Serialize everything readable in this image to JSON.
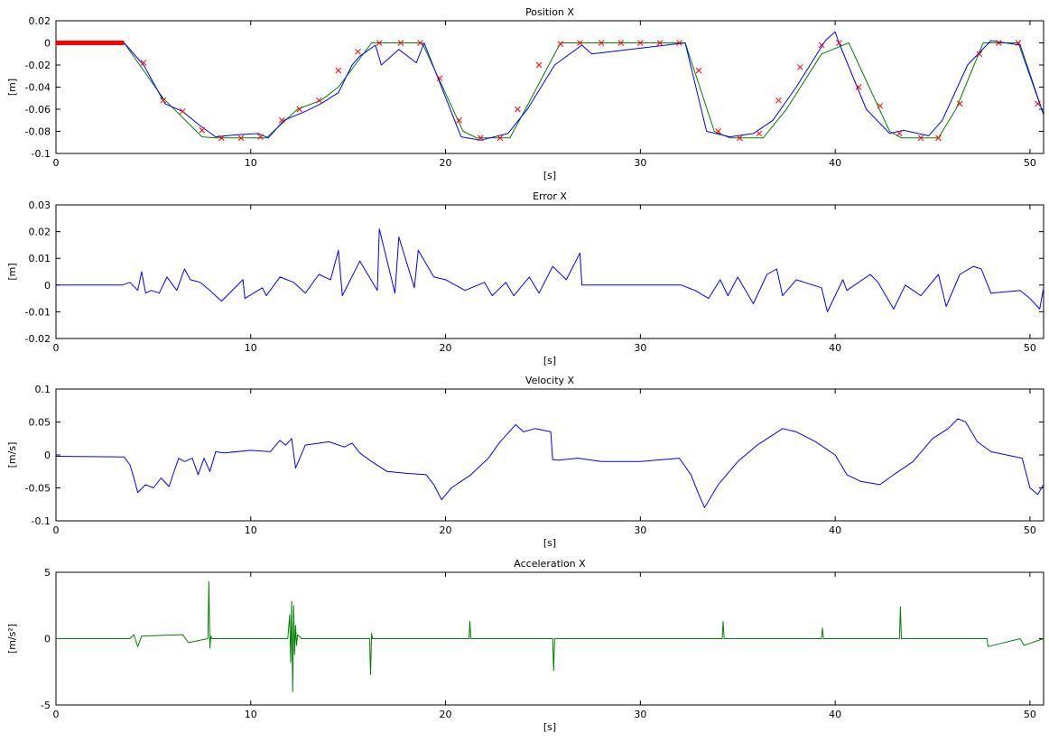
{
  "chart_data": [
    {
      "type": "line",
      "title": "Position X",
      "xlabel": "[s]",
      "ylabel": "[m]",
      "xlim": [
        0,
        50.7
      ],
      "ylim": [
        -0.1,
        0.02
      ],
      "xticks": [
        0,
        10,
        20,
        30,
        40,
        50
      ],
      "xtick_labels": [
        "0",
        "10",
        "20",
        "30",
        "40",
        "50"
      ],
      "yticks": [
        -0.1,
        -0.08,
        -0.06,
        -0.04,
        -0.02,
        0,
        0.02
      ],
      "ytick_labels": [
        "-0.1",
        "-0.08",
        "-0.06",
        "-0.04",
        "-0.02",
        "0",
        "0.02"
      ],
      "grid": false,
      "colors": {
        "reference": "#008000",
        "measured": "#0000ff",
        "waypoints": "#ff0000",
        "initial": "#ff0000"
      },
      "series": [
        {
          "role": "reference",
          "x": [
            0,
            3.5,
            5.5,
            7.5,
            8.2,
            10.8,
            12.4,
            13.6,
            14.5,
            16.2,
            16.6,
            18.8,
            20.9,
            21.6,
            23.3,
            24.1,
            25.9,
            32.3,
            33.8,
            34.6,
            36.3,
            37.5,
            39.3,
            40.7,
            42.8,
            43.4,
            45.3,
            46.2,
            47.6,
            49.4,
            50.7
          ],
          "y": [
            0,
            0,
            -0.05,
            -0.085,
            -0.086,
            -0.086,
            -0.06,
            -0.052,
            -0.04,
            0,
            0,
            0,
            -0.08,
            -0.086,
            -0.086,
            -0.06,
            0,
            0,
            -0.08,
            -0.086,
            -0.086,
            -0.06,
            -0.01,
            0,
            -0.08,
            -0.086,
            -0.086,
            -0.06,
            0,
            0,
            -0.065
          ]
        },
        {
          "role": "measured",
          "x": [
            0,
            3.5,
            4.5,
            5.6,
            6.5,
            7.4,
            8.2,
            9.3,
            10.4,
            10.9,
            11.7,
            12.8,
            13.6,
            14.5,
            15.2,
            15.6,
            16.4,
            16.7,
            17.6,
            18.5,
            18.9,
            20.8,
            21.8,
            23.2,
            24.2,
            25.6,
            27.0,
            27.5,
            32.3,
            33.4,
            34.6,
            35.8,
            36.8,
            38.0,
            39.5,
            40.0,
            40.2,
            41.6,
            42.8,
            43.5,
            44.8,
            45.5,
            46.8,
            48.0,
            49.5,
            50.7
          ],
          "y": [
            0,
            0,
            -0.02,
            -0.055,
            -0.062,
            -0.075,
            -0.085,
            -0.083,
            -0.082,
            -0.086,
            -0.07,
            -0.062,
            -0.055,
            -0.045,
            -0.02,
            -0.012,
            -0.002,
            -0.02,
            -0.006,
            -0.018,
            0,
            -0.085,
            -0.088,
            -0.082,
            -0.06,
            -0.02,
            -0.002,
            -0.01,
            0,
            -0.08,
            -0.085,
            -0.082,
            -0.07,
            -0.04,
            0.002,
            0.01,
            0,
            -0.06,
            -0.082,
            -0.079,
            -0.084,
            -0.07,
            -0.02,
            0.002,
            -0.002,
            -0.065
          ]
        },
        {
          "role": "waypoints",
          "x": [
            4.5,
            5.5,
            6.5,
            7.5,
            8.5,
            9.5,
            10.5,
            11.6,
            12.5,
            13.5,
            14.5,
            15.5,
            16.6,
            17.7,
            18.7,
            19.7,
            20.7,
            21.8,
            22.8,
            23.7,
            24.8,
            25.9,
            26.9,
            28.0,
            29.0,
            30.0,
            31.0,
            32.0,
            33.0,
            34.0,
            35.1,
            36.1,
            37.1,
            38.2,
            39.3,
            40.2,
            41.2,
            42.3,
            43.3,
            44.4,
            45.3,
            46.4,
            47.4,
            48.4,
            49.4,
            50.4
          ],
          "y": [
            -0.018,
            -0.052,
            -0.062,
            -0.079,
            -0.086,
            -0.086,
            -0.085,
            -0.07,
            -0.06,
            -0.052,
            -0.025,
            -0.008,
            0,
            0,
            0,
            -0.032,
            -0.07,
            -0.086,
            -0.086,
            -0.06,
            -0.02,
            -0.001,
            0,
            0,
            0,
            0,
            0,
            0,
            -0.025,
            -0.08,
            -0.086,
            -0.082,
            -0.052,
            -0.022,
            -0.002,
            0,
            -0.04,
            -0.057,
            -0.082,
            -0.086,
            -0.086,
            -0.055,
            -0.01,
            0,
            0,
            -0.055
          ]
        },
        {
          "role": "initial",
          "x": [
            0,
            3.5
          ],
          "y": [
            0,
            0
          ]
        }
      ]
    },
    {
      "type": "line",
      "title": "Error X",
      "xlabel": "[s]",
      "ylabel": "[m]",
      "xlim": [
        0,
        50.7
      ],
      "ylim": [
        -0.02,
        0.03
      ],
      "xticks": [
        0,
        10,
        20,
        30,
        40,
        50
      ],
      "xtick_labels": [
        "0",
        "10",
        "20",
        "30",
        "40",
        "50"
      ],
      "yticks": [
        -0.02,
        -0.01,
        0,
        0.01,
        0.02,
        0.03
      ],
      "ytick_labels": [
        "-0.02",
        "-0.01",
        "0",
        "0.01",
        "0.02",
        "0.03"
      ],
      "grid": false,
      "colors": {
        "error": "#0000ff"
      },
      "series": [
        {
          "role": "error",
          "x": [
            0,
            3.4,
            3.8,
            4.2,
            4.4,
            4.6,
            4.9,
            5.3,
            5.7,
            6.2,
            6.6,
            6.9,
            7.4,
            7.9,
            8.5,
            9.6,
            9.7,
            10.6,
            10.8,
            11.5,
            12.2,
            12.8,
            13.5,
            14.1,
            14.5,
            14.7,
            15.6,
            16.5,
            16.6,
            17.4,
            17.6,
            18.4,
            18.6,
            19.4,
            20.0,
            21.0,
            22.0,
            22.4,
            23.1,
            23.5,
            24.3,
            24.8,
            25.5,
            26.2,
            26.9,
            27.0,
            28.5,
            32.1,
            32.8,
            33.5,
            34.1,
            34.5,
            35.0,
            35.8,
            36.5,
            37.0,
            37.3,
            38.0,
            39.3,
            39.6,
            40.4,
            40.6,
            41.8,
            42.2,
            43.0,
            43.6,
            44.4,
            45.3,
            45.7,
            46.4,
            47.1,
            47.5,
            48.0,
            49.5,
            50.0,
            50.5,
            50.7
          ],
          "y": [
            0,
            0,
            0.001,
            -0.002,
            0.005,
            -0.003,
            -0.002,
            -0.003,
            0.003,
            -0.002,
            0.006,
            0.002,
            0.001,
            -0.002,
            -0.006,
            0.002,
            -0.005,
            -0.001,
            -0.004,
            0.003,
            0.001,
            -0.003,
            0.004,
            0.002,
            0.013,
            -0.004,
            0.009,
            -0.002,
            0.021,
            -0.003,
            0.018,
            -0.001,
            0.013,
            0.003,
            0.002,
            -0.002,
            0.001,
            -0.004,
            0.001,
            -0.004,
            0.003,
            -0.003,
            0.007,
            0.002,
            0.012,
            0,
            0,
            0,
            -0.002,
            -0.005,
            0.002,
            -0.004,
            0.003,
            -0.007,
            0.004,
            0.006,
            -0.004,
            0.002,
            -0.001,
            -0.01,
            0.002,
            -0.002,
            0.004,
            0.001,
            -0.009,
            0,
            -0.004,
            0.004,
            -0.008,
            0.004,
            0.007,
            0.006,
            -0.003,
            -0.002,
            -0.005,
            -0.009,
            -0.001
          ]
        }
      ]
    },
    {
      "type": "line",
      "title": "Velocity X",
      "xlabel": "[s]",
      "ylabel": "[m/s]",
      "xlim": [
        0,
        50.7
      ],
      "ylim": [
        -0.1,
        0.1
      ],
      "xticks": [
        0,
        10,
        20,
        30,
        40,
        50
      ],
      "xtick_labels": [
        "0",
        "10",
        "20",
        "30",
        "40",
        "50"
      ],
      "yticks": [
        -0.1,
        -0.05,
        0,
        0.05,
        0.1
      ],
      "ytick_labels": [
        "-0.1",
        "-0.05",
        "0",
        "0.05",
        "0.1"
      ],
      "grid": false,
      "colors": {
        "velocity": "#0000ff"
      },
      "series": [
        {
          "role": "velocity",
          "x": [
            0,
            3.5,
            3.8,
            4.0,
            4.2,
            4.6,
            5.0,
            5.4,
            5.8,
            6.3,
            6.6,
            7.0,
            7.3,
            7.6,
            7.9,
            8.2,
            8.6,
            10.0,
            11.0,
            11.5,
            11.8,
            12.1,
            12.3,
            12.8,
            14.0,
            14.8,
            15.2,
            15.6,
            16.2,
            17.0,
            18.0,
            19.0,
            19.4,
            19.8,
            20.3,
            21.3,
            22.2,
            22.8,
            23.6,
            24.0,
            24.6,
            25.4,
            25.5,
            25.8,
            26.8,
            28.0,
            30.0,
            32.0,
            32.6,
            33.0,
            33.3,
            34.0,
            35.0,
            36.0,
            37.3,
            38.0,
            39.0,
            40.0,
            40.6,
            41.3,
            42.3,
            43.0,
            44.0,
            45.0,
            45.8,
            46.3,
            46.7,
            47.3,
            48.0,
            49.6,
            50.0,
            50.4,
            50.7
          ],
          "y": [
            -0.002,
            -0.003,
            -0.015,
            -0.035,
            -0.057,
            -0.045,
            -0.05,
            -0.035,
            -0.048,
            -0.005,
            -0.01,
            -0.005,
            -0.03,
            -0.005,
            -0.025,
            0.005,
            0.003,
            0.007,
            0.005,
            0.022,
            0.015,
            0.025,
            -0.02,
            0.015,
            0.02,
            0.012,
            0.018,
            0.003,
            -0.01,
            -0.025,
            -0.028,
            -0.03,
            -0.045,
            -0.068,
            -0.05,
            -0.03,
            -0.005,
            0.02,
            0.046,
            0.035,
            0.04,
            0.035,
            -0.007,
            -0.008,
            -0.005,
            -0.01,
            -0.01,
            -0.005,
            -0.03,
            -0.06,
            -0.08,
            -0.045,
            -0.01,
            0.015,
            0.04,
            0.035,
            0.02,
            0.0,
            -0.03,
            -0.04,
            -0.045,
            -0.03,
            -0.01,
            0.025,
            0.04,
            0.055,
            0.05,
            0.02,
            0.005,
            -0.005,
            -0.05,
            -0.06,
            -0.045
          ]
        }
      ]
    },
    {
      "type": "line",
      "title": "Acceleration X",
      "xlabel": "[s]",
      "ylabel": "[m/s²]",
      "xlim": [
        0,
        50.7
      ],
      "ylim": [
        -5,
        5
      ],
      "xticks": [
        0,
        10,
        20,
        30,
        40,
        50
      ],
      "xtick_labels": [
        "0",
        "10",
        "20",
        "30",
        "40",
        "50"
      ],
      "yticks": [
        -5,
        0,
        5
      ],
      "ytick_labels": [
        "-5",
        "0",
        "5"
      ],
      "grid": false,
      "colors": {
        "acceleration": "#008000"
      },
      "series": [
        {
          "role": "acceleration",
          "x": [
            0,
            3.8,
            4.0,
            4.2,
            4.4,
            6.5,
            6.8,
            7.8,
            7.85,
            7.9,
            7.95,
            8.0,
            11.9,
            12.0,
            12.05,
            12.1,
            12.15,
            12.2,
            12.25,
            12.3,
            12.35,
            12.4,
            12.6,
            16.1,
            16.15,
            16.2,
            16.25,
            21.2,
            21.25,
            21.3,
            25.5,
            25.55,
            25.6,
            34.2,
            34.25,
            34.3,
            39.3,
            39.35,
            39.4,
            43.3,
            43.35,
            43.4,
            47.8,
            47.85,
            49.5,
            49.7,
            50.7
          ],
          "y": [
            0,
            0,
            0.3,
            -0.6,
            0.2,
            0.3,
            -0.3,
            0,
            4.3,
            -0.7,
            0.2,
            0,
            0,
            1.8,
            -1.8,
            2.8,
            -4.0,
            2.5,
            -1.2,
            1.0,
            -0.5,
            0.3,
            0,
            0,
            -2.7,
            0.4,
            0,
            0,
            1.3,
            0,
            0,
            -2.4,
            0,
            0,
            1.3,
            0,
            0,
            0.8,
            0,
            0,
            2.4,
            0,
            0,
            -0.6,
            0,
            -0.5,
            0
          ]
        }
      ]
    }
  ]
}
